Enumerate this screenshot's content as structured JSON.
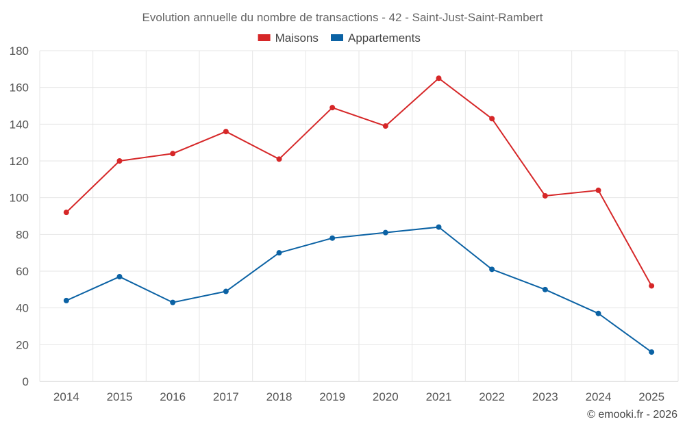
{
  "chart_data": {
    "type": "line",
    "title": "Evolution annuelle du nombre de transactions - 42 - Saint-Just-Saint-Rambert",
    "categories": [
      "2014",
      "2015",
      "2016",
      "2017",
      "2018",
      "2019",
      "2020",
      "2021",
      "2022",
      "2023",
      "2024",
      "2025"
    ],
    "series": [
      {
        "name": "Maisons",
        "color": "#d62728",
        "values": [
          92,
          120,
          124,
          136,
          121,
          149,
          139,
          165,
          143,
          101,
          104,
          52
        ]
      },
      {
        "name": "Appartements",
        "color": "#0b62a4",
        "values": [
          44,
          57,
          43,
          49,
          70,
          78,
          81,
          84,
          61,
          50,
          37,
          16
        ]
      }
    ],
    "yticks": [
      0,
      20,
      40,
      60,
      80,
      100,
      120,
      140,
      160,
      180
    ],
    "ylim": [
      0,
      180
    ],
    "grid": true,
    "legend_position": "top-center",
    "xlabel": "",
    "ylabel": ""
  },
  "credit": "© emooki.fr - 2026"
}
